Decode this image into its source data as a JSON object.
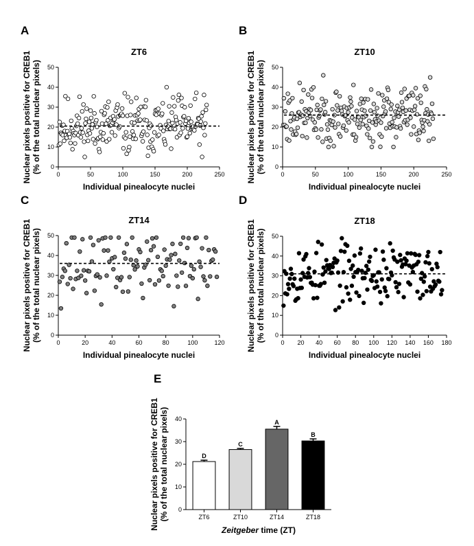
{
  "chart_data": [
    {
      "panel": "A",
      "type": "scatter",
      "title": "ZT6",
      "xlabel": "Individual pinealocyte nuclei",
      "ylabel": [
        "Nuclear pixels positive for CREB1",
        "(% of the total nuclear pixels)"
      ],
      "xlim": [
        0,
        250
      ],
      "ylim": [
        0,
        50
      ],
      "xticks": [
        0,
        50,
        100,
        150,
        200,
        250
      ],
      "yticks": [
        0,
        10,
        20,
        30,
        40,
        50
      ],
      "mean_line": 20.5,
      "marker": {
        "fill": "#ffffff",
        "stroke": "#000000"
      },
      "count": 230,
      "low": 5,
      "high": 40,
      "seed": 11
    },
    {
      "panel": "B",
      "type": "scatter",
      "title": "ZT10",
      "xlabel": "Individual pinealocyte nuclei",
      "ylabel": [
        "Nuclear pixels positive for CREB1",
        "(% of the total nuclear pixels)"
      ],
      "xlim": [
        0,
        250
      ],
      "ylim": [
        0,
        50
      ],
      "xticks": [
        0,
        50,
        100,
        150,
        200,
        250
      ],
      "yticks": [
        0,
        10,
        20,
        30,
        40,
        50
      ],
      "mean_line": 26,
      "marker": {
        "fill": "#d9d9d9",
        "stroke": "#000000"
      },
      "count": 230,
      "low": 10,
      "high": 46,
      "seed": 23
    },
    {
      "panel": "C",
      "type": "scatter",
      "title": "ZT14",
      "xlabel": "Individual pinealocyte nuclei",
      "ylabel": [
        "Nuclear pixels positive for CREB1",
        "(% of the total nuclear pixels)"
      ],
      "xlim": [
        0,
        120
      ],
      "ylim": [
        0,
        50
      ],
      "xticks": [
        0,
        20,
        40,
        60,
        80,
        100,
        120
      ],
      "yticks": [
        0,
        10,
        20,
        30,
        40,
        50
      ],
      "mean_line": 36,
      "marker": {
        "fill": "#7f7f7f",
        "stroke": "#000000"
      },
      "count": 118,
      "low": 10,
      "high": 49,
      "seed": 37
    },
    {
      "panel": "D",
      "type": "scatter",
      "title": "ZT18",
      "xlabel": "Individual pinealocyte nuclei",
      "ylabel": [
        "Nuclear pixels positive for CREB1",
        "(% of the total nuclear pixels)"
      ],
      "xlim": [
        0,
        180
      ],
      "ylim": [
        0,
        50
      ],
      "xticks": [
        0,
        20,
        40,
        60,
        80,
        100,
        120,
        140,
        160,
        180
      ],
      "yticks": [
        0,
        10,
        20,
        30,
        40,
        50
      ],
      "mean_line": 31,
      "marker": {
        "fill": "#000000",
        "stroke": "#000000"
      },
      "count": 175,
      "low": 11,
      "high": 49,
      "seed": 53
    },
    {
      "panel": "E",
      "type": "bar",
      "xlabel_italic": "Zeitgeber",
      "xlabel_rest": " time (ZT)",
      "ylabel": [
        "Nuclear pixels positive for CREB1",
        "(% of the total nuclear pixels)"
      ],
      "ylim": [
        0,
        40
      ],
      "yticks": [
        0,
        10,
        20,
        30,
        40
      ],
      "categories": [
        "ZT6",
        "ZT10",
        "ZT14",
        "ZT18"
      ],
      "values": [
        21.2,
        26.5,
        35.5,
        30.3
      ],
      "errors": [
        0.6,
        0.5,
        1.2,
        0.9
      ],
      "letters": [
        "D",
        "C",
        "A",
        "B"
      ],
      "colors": [
        "#ffffff",
        "#d9d9d9",
        "#666666",
        "#000000"
      ]
    }
  ]
}
